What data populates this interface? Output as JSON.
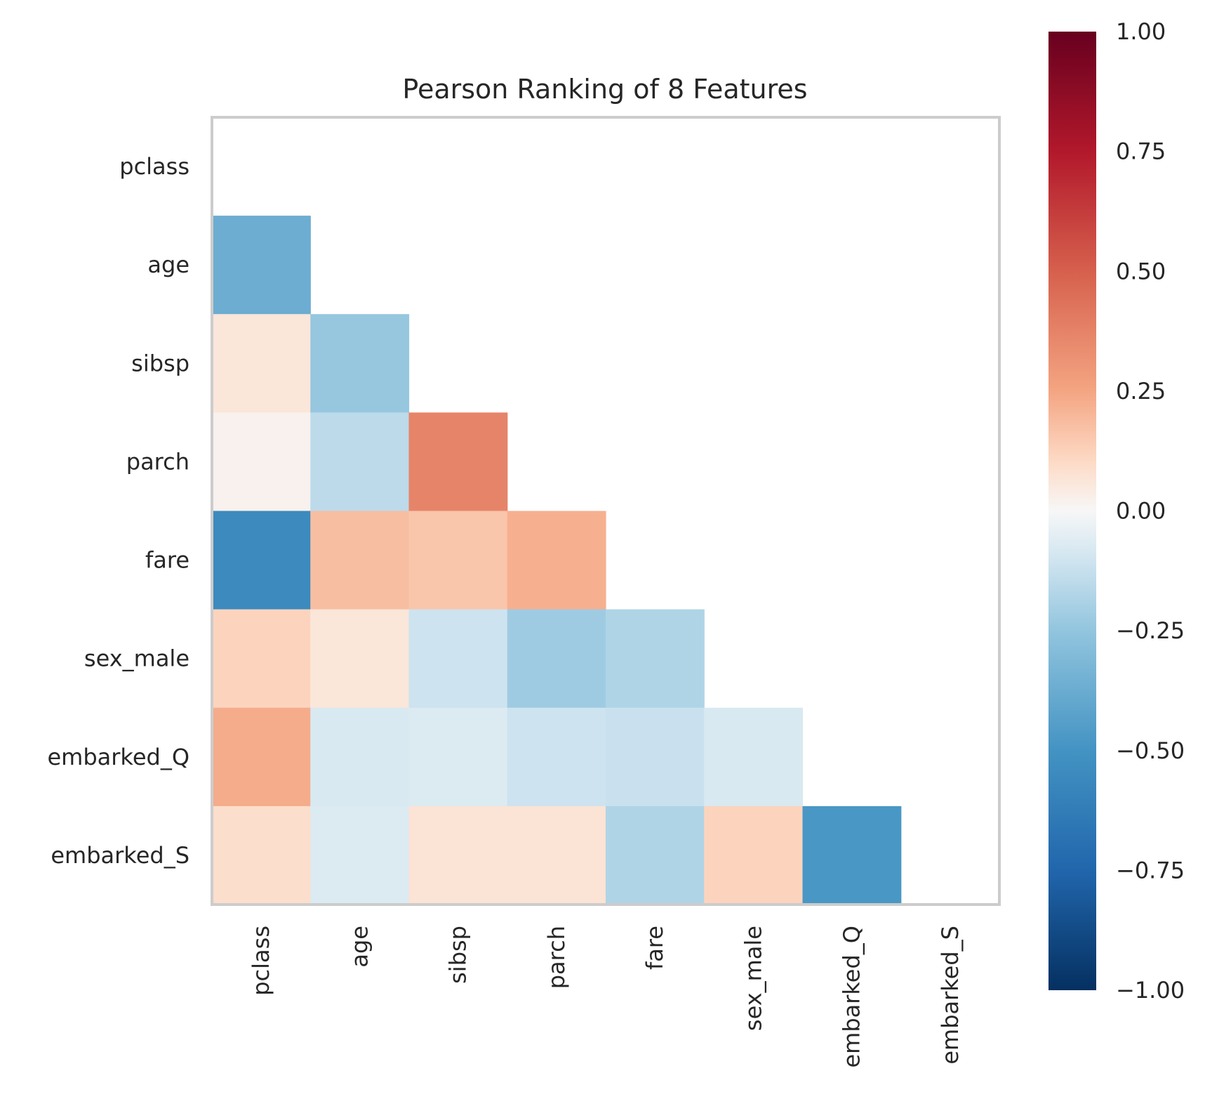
{
  "chart_data": {
    "type": "heatmap",
    "title": "Pearson Ranking of 8 Features",
    "features": [
      "pclass",
      "age",
      "sibsp",
      "parch",
      "fare",
      "sex_male",
      "embarked_Q",
      "embarked_S"
    ],
    "rows": [
      {
        "label": "age",
        "values": [
          -0.37
        ]
      },
      {
        "label": "sibsp",
        "values": [
          0.06,
          -0.24
        ]
      },
      {
        "label": "parch",
        "values": [
          0.02,
          -0.15,
          0.37
        ]
      },
      {
        "label": "fare",
        "values": [
          -0.55,
          0.18,
          0.16,
          0.22
        ]
      },
      {
        "label": "sex_male",
        "values": [
          0.12,
          0.06,
          -0.11,
          -0.22,
          -0.18
        ]
      },
      {
        "label": "embarked_Q",
        "values": [
          0.23,
          -0.08,
          -0.07,
          -0.11,
          -0.12,
          -0.08
        ]
      },
      {
        "label": "embarked_S",
        "values": [
          0.09,
          -0.07,
          0.07,
          0.07,
          -0.18,
          0.12,
          -0.48
        ]
      }
    ],
    "colorbar": {
      "range": [
        -1.0,
        1.0
      ],
      "ticks": [
        "1.00",
        "0.75",
        "0.50",
        "0.25",
        "0.00",
        "−0.25",
        "−0.50",
        "−0.75",
        "−1.00"
      ],
      "colormap": "RdBu_r"
    }
  }
}
